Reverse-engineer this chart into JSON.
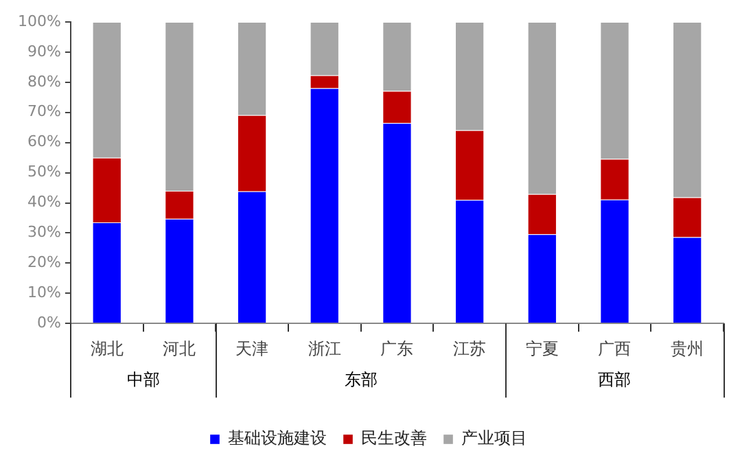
{
  "chart_data": {
    "type": "bar",
    "stacked": true,
    "categories": [
      "湖北",
      "河北",
      "天津",
      "浙江",
      "广东",
      "江苏",
      "宁夏",
      "广西",
      "贵州"
    ],
    "series": [
      {
        "name": "基础设施建设",
        "color": "#0000ff",
        "values": [
          33.5,
          34.7,
          43.8,
          78.0,
          66.5,
          41.0,
          29.6,
          41.1,
          28.6
        ]
      },
      {
        "name": "民生改善",
        "color": "#c00000",
        "values": [
          21.5,
          9.3,
          25.3,
          4.3,
          10.6,
          23.1,
          13.3,
          13.5,
          13.2
        ]
      },
      {
        "name": "产业项目",
        "color": "#a6a6a6",
        "values": [
          45.0,
          56.0,
          30.9,
          17.7,
          22.9,
          35.9,
          57.1,
          45.4,
          58.2
        ]
      }
    ],
    "ylim": [
      0,
      100
    ],
    "yticks": [
      {
        "value": 0,
        "label": "0%"
      },
      {
        "value": 10,
        "label": "10%"
      },
      {
        "value": 20,
        "label": "20%"
      },
      {
        "value": 30,
        "label": "30%"
      },
      {
        "value": 40,
        "label": "40%"
      },
      {
        "value": 50,
        "label": "50%"
      },
      {
        "value": 60,
        "label": "60%"
      },
      {
        "value": 70,
        "label": "70%"
      },
      {
        "value": 80,
        "label": "80%"
      },
      {
        "value": 90,
        "label": "90%"
      },
      {
        "value": 100,
        "label": "100%"
      }
    ],
    "annotations": [
      "中部",
      "东部",
      "西部"
    ],
    "grid": false,
    "legend": "bottom"
  }
}
